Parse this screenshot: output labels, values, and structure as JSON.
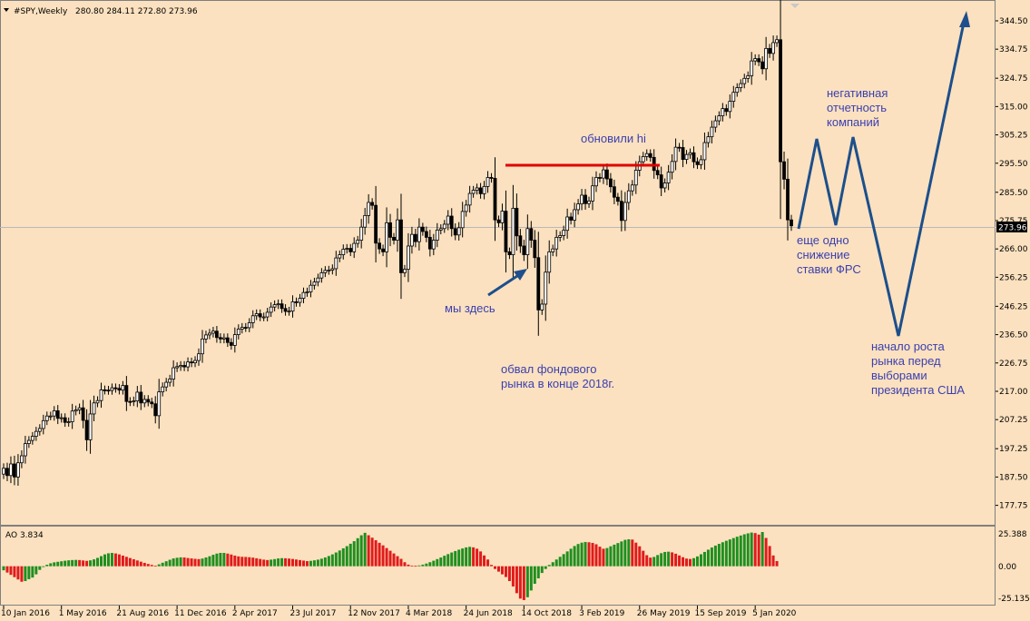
{
  "header": {
    "symbol": "#SPY,Weekly",
    "ohlc": "280.80 284.11 272.80 273.96"
  },
  "indicator": {
    "label": "AO 3.834",
    "scale_labels": [
      "25.388",
      "0.00",
      "-25.135"
    ]
  },
  "chart_data": {
    "type": "candlestick",
    "timeframe": "Weekly",
    "price_axis": {
      "range": [
        172.0,
        347.3
      ],
      "tick_labels": [
        "344.50",
        "334.75",
        "324.75",
        "315.00",
        "305.25",
        "295.50",
        "285.50",
        "275.75",
        "266.00",
        "256.25",
        "246.25",
        "236.50",
        "226.75",
        "217.00",
        "207.25",
        "197.25",
        "187.50",
        "177.75"
      ]
    },
    "current_price": "273.96",
    "x_labels": [
      "10 Jan 2016",
      "1 May 2016",
      "21 Aug 2016",
      "11 Dec 2016",
      "2 Apr 2017",
      "23 Jul 2017",
      "12 Nov 2017",
      "4 Mar 2018",
      "24 Jun 2018",
      "14 Oct 2018",
      "3 Feb 2019",
      "26 May 2019",
      "15 Sep 2019",
      "5 Jan 2020"
    ],
    "closes": [
      190.5,
      188.0,
      192.0,
      187.5,
      192.4,
      194.8,
      199.0,
      200.1,
      201.5,
      203.2,
      204.2,
      206.9,
      208.5,
      208.5,
      210.3,
      207.7,
      207.9,
      206.3,
      206.5,
      210.2,
      210.6,
      211.3,
      207.0,
      200.3,
      209.2,
      213.0,
      213.8,
      217.5,
      217.4,
      217.3,
      218.2,
      218.0,
      217.4,
      219.0,
      213.5,
      213.4,
      213.7,
      216.7,
      213.0,
      214.2,
      213.3,
      212.7,
      208.6,
      216.8,
      218.5,
      220.1,
      221.2,
      225.1,
      225.5,
      225.9,
      225.4,
      227.1,
      226.8,
      227.6,
      229.9,
      235.0,
      236.4,
      237.0,
      237.7,
      235.5,
      235.0,
      235.4,
      233.8,
      232.8,
      236.5,
      238.4,
      239.0,
      238.9,
      240.6,
      243.0,
      243.7,
      242.6,
      242.6,
      244.2,
      246.0,
      246.8,
      247.1,
      245.5,
      244.5,
      244.6,
      247.8,
      247.6,
      249.0,
      251.0,
      251.2,
      253.5,
      254.6,
      256.0,
      257.8,
      258.6,
      258.7,
      259.2,
      262.9,
      264.0,
      265.9,
      266.2,
      265.0,
      267.9,
      269.0,
      273.5,
      277.5,
      282.0,
      281.0,
      268.0,
      266.0,
      265.0,
      275.0,
      270.0,
      269.0,
      276.0,
      257.8,
      259.0,
      267.0,
      271.0,
      268.5,
      273.5,
      272.0,
      270.0,
      266.0,
      269.0,
      272.5,
      273.0,
      274.5,
      277.3,
      273.0,
      270.8,
      273.3,
      278.9,
      281.1,
      285.1,
      286.2,
      287.0,
      285.0,
      287.5,
      290.6,
      290.3,
      276.0,
      275.0,
      279.0,
      265.0,
      264.0,
      280.0,
      270.5,
      267.0,
      264.0,
      273.0,
      269.0,
      263.0,
      245.0,
      247.0,
      258.0,
      265.0,
      266.0,
      270.0,
      270.6,
      272.4,
      277.0,
      275.9,
      279.5,
      281.5,
      284.5,
      281.6,
      282.5,
      287.7,
      290.6,
      290.4,
      293.2,
      290.1,
      287.4,
      283.8,
      282.4,
      275.8,
      282.0,
      286.0,
      288.0,
      293.1,
      296.0,
      297.8,
      298.8,
      297.5,
      293.0,
      291.5,
      287.0,
      288.7,
      292.4,
      296.1,
      301.0,
      300.9,
      296.8,
      298.5,
      299.1,
      296.0,
      295.0,
      296.7,
      302.6,
      304.6,
      307.9,
      310.1,
      311.8,
      314.3,
      313.3,
      316.8,
      319.9,
      321.5,
      322.9,
      324.7,
      325.6,
      330.7,
      331.5,
      330.4,
      328.0,
      335.0,
      333.3,
      337.0,
      338.0,
      296.0,
      290.0,
      276.0,
      273.96
    ],
    "ao_values": [
      -3.0,
      -4.7,
      -6.4,
      -8.1,
      -9.8,
      -11.5,
      -11.0,
      -9.6,
      -8.4,
      -6.0,
      -2.7,
      -0.6,
      1.1,
      2.2,
      2.9,
      3.3,
      3.7,
      4.1,
      4.4,
      4.6,
      4.7,
      4.6,
      4.3,
      4.0,
      4.4,
      5.1,
      6.2,
      7.5,
      8.8,
      9.6,
      9.9,
      9.5,
      8.8,
      7.9,
      7.0,
      6.1,
      5.2,
      4.3,
      3.4,
      2.5,
      1.7,
      1.0,
      0.4,
      1.4,
      2.6,
      3.7,
      4.8,
      5.8,
      6.3,
      6.6,
      6.5,
      6.1,
      5.8,
      5.5,
      5.3,
      5.7,
      6.5,
      7.4,
      8.5,
      9.4,
      9.9,
      9.9,
      9.4,
      8.7,
      7.9,
      7.3,
      7.0,
      6.9,
      6.7,
      6.4,
      5.9,
      5.4,
      4.9,
      4.6,
      4.9,
      5.3,
      5.8,
      6.0,
      5.9,
      5.7,
      5.4,
      5.0,
      4.6,
      4.2,
      3.8,
      4.0,
      4.4,
      4.9,
      5.6,
      6.5,
      7.6,
      8.8,
      10.2,
      11.7,
      13.3,
      14.9,
      16.7,
      18.6,
      20.8,
      23.0,
      24.8,
      23.0,
      21.2,
      19.3,
      17.4,
      15.5,
      13.5,
      11.5,
      9.5,
      7.5,
      5.5,
      3.0,
      1.2,
      0.5,
      0.3,
      0.6,
      1.2,
      2.0,
      3.0,
      4.1,
      5.3,
      6.5,
      7.8,
      9.0,
      10.2,
      11.3,
      12.3,
      13.2,
      14.0,
      14.4,
      14.0,
      13.0,
      11.0,
      8.0,
      5.0,
      1.0,
      -2.0,
      -4.0,
      -6.0,
      -8.0,
      -11.0,
      -15.0,
      -20.0,
      -24.0,
      -25.1,
      -23.0,
      -18.0,
      -13.0,
      -9.0,
      -5.0,
      -2.0,
      1.0,
      3.0,
      5.0,
      7.0,
      9.0,
      11.0,
      13.0,
      15.0,
      16.5,
      17.5,
      18.0,
      17.8,
      17.3,
      16.3,
      14.5,
      13.0,
      13.5,
      14.8,
      16.0,
      17.2,
      18.4,
      19.6,
      20.0,
      19.8,
      17.5,
      14.8,
      11.5,
      8.2,
      6.4,
      6.9,
      8.3,
      9.7,
      10.6,
      10.8,
      10.3,
      9.3,
      8.0,
      6.7,
      5.7,
      5.4,
      6.0,
      7.3,
      8.9,
      10.6,
      12.3,
      13.9,
      15.3,
      16.6,
      17.8,
      18.9,
      19.9,
      20.9,
      21.9,
      22.8,
      23.7,
      24.4,
      25.0,
      24.6,
      23.5,
      25.388,
      21.0,
      15.0,
      8.0,
      3.834
    ]
  },
  "annotations": {
    "new_high": "обновили hi",
    "we_are_here": "мы здесь",
    "crash_line1": "обвал фондового",
    "crash_line2": "рынка в конце 2018г.",
    "earnings_line1": "негативная",
    "earnings_line2": "отчетность",
    "earnings_line3": "компаний",
    "fed_line1": "еще одно",
    "fed_line2": "снижение",
    "fed_line3": "ставки ФРС",
    "rally_line1": "начало роста",
    "rally_line2": "рынка перед",
    "rally_line3": "выборами",
    "rally_line4": "президента США"
  },
  "colors": {
    "background": "#fbe1bf",
    "bull_candle": "#ffffff",
    "bear_candle": "#000000",
    "ao_up": "#1f8f1f",
    "ao_down": "#e01b1b",
    "annotation_text": "#3b3fb1",
    "arrow": "#1c4f8c",
    "high_line": "#e00000"
  }
}
